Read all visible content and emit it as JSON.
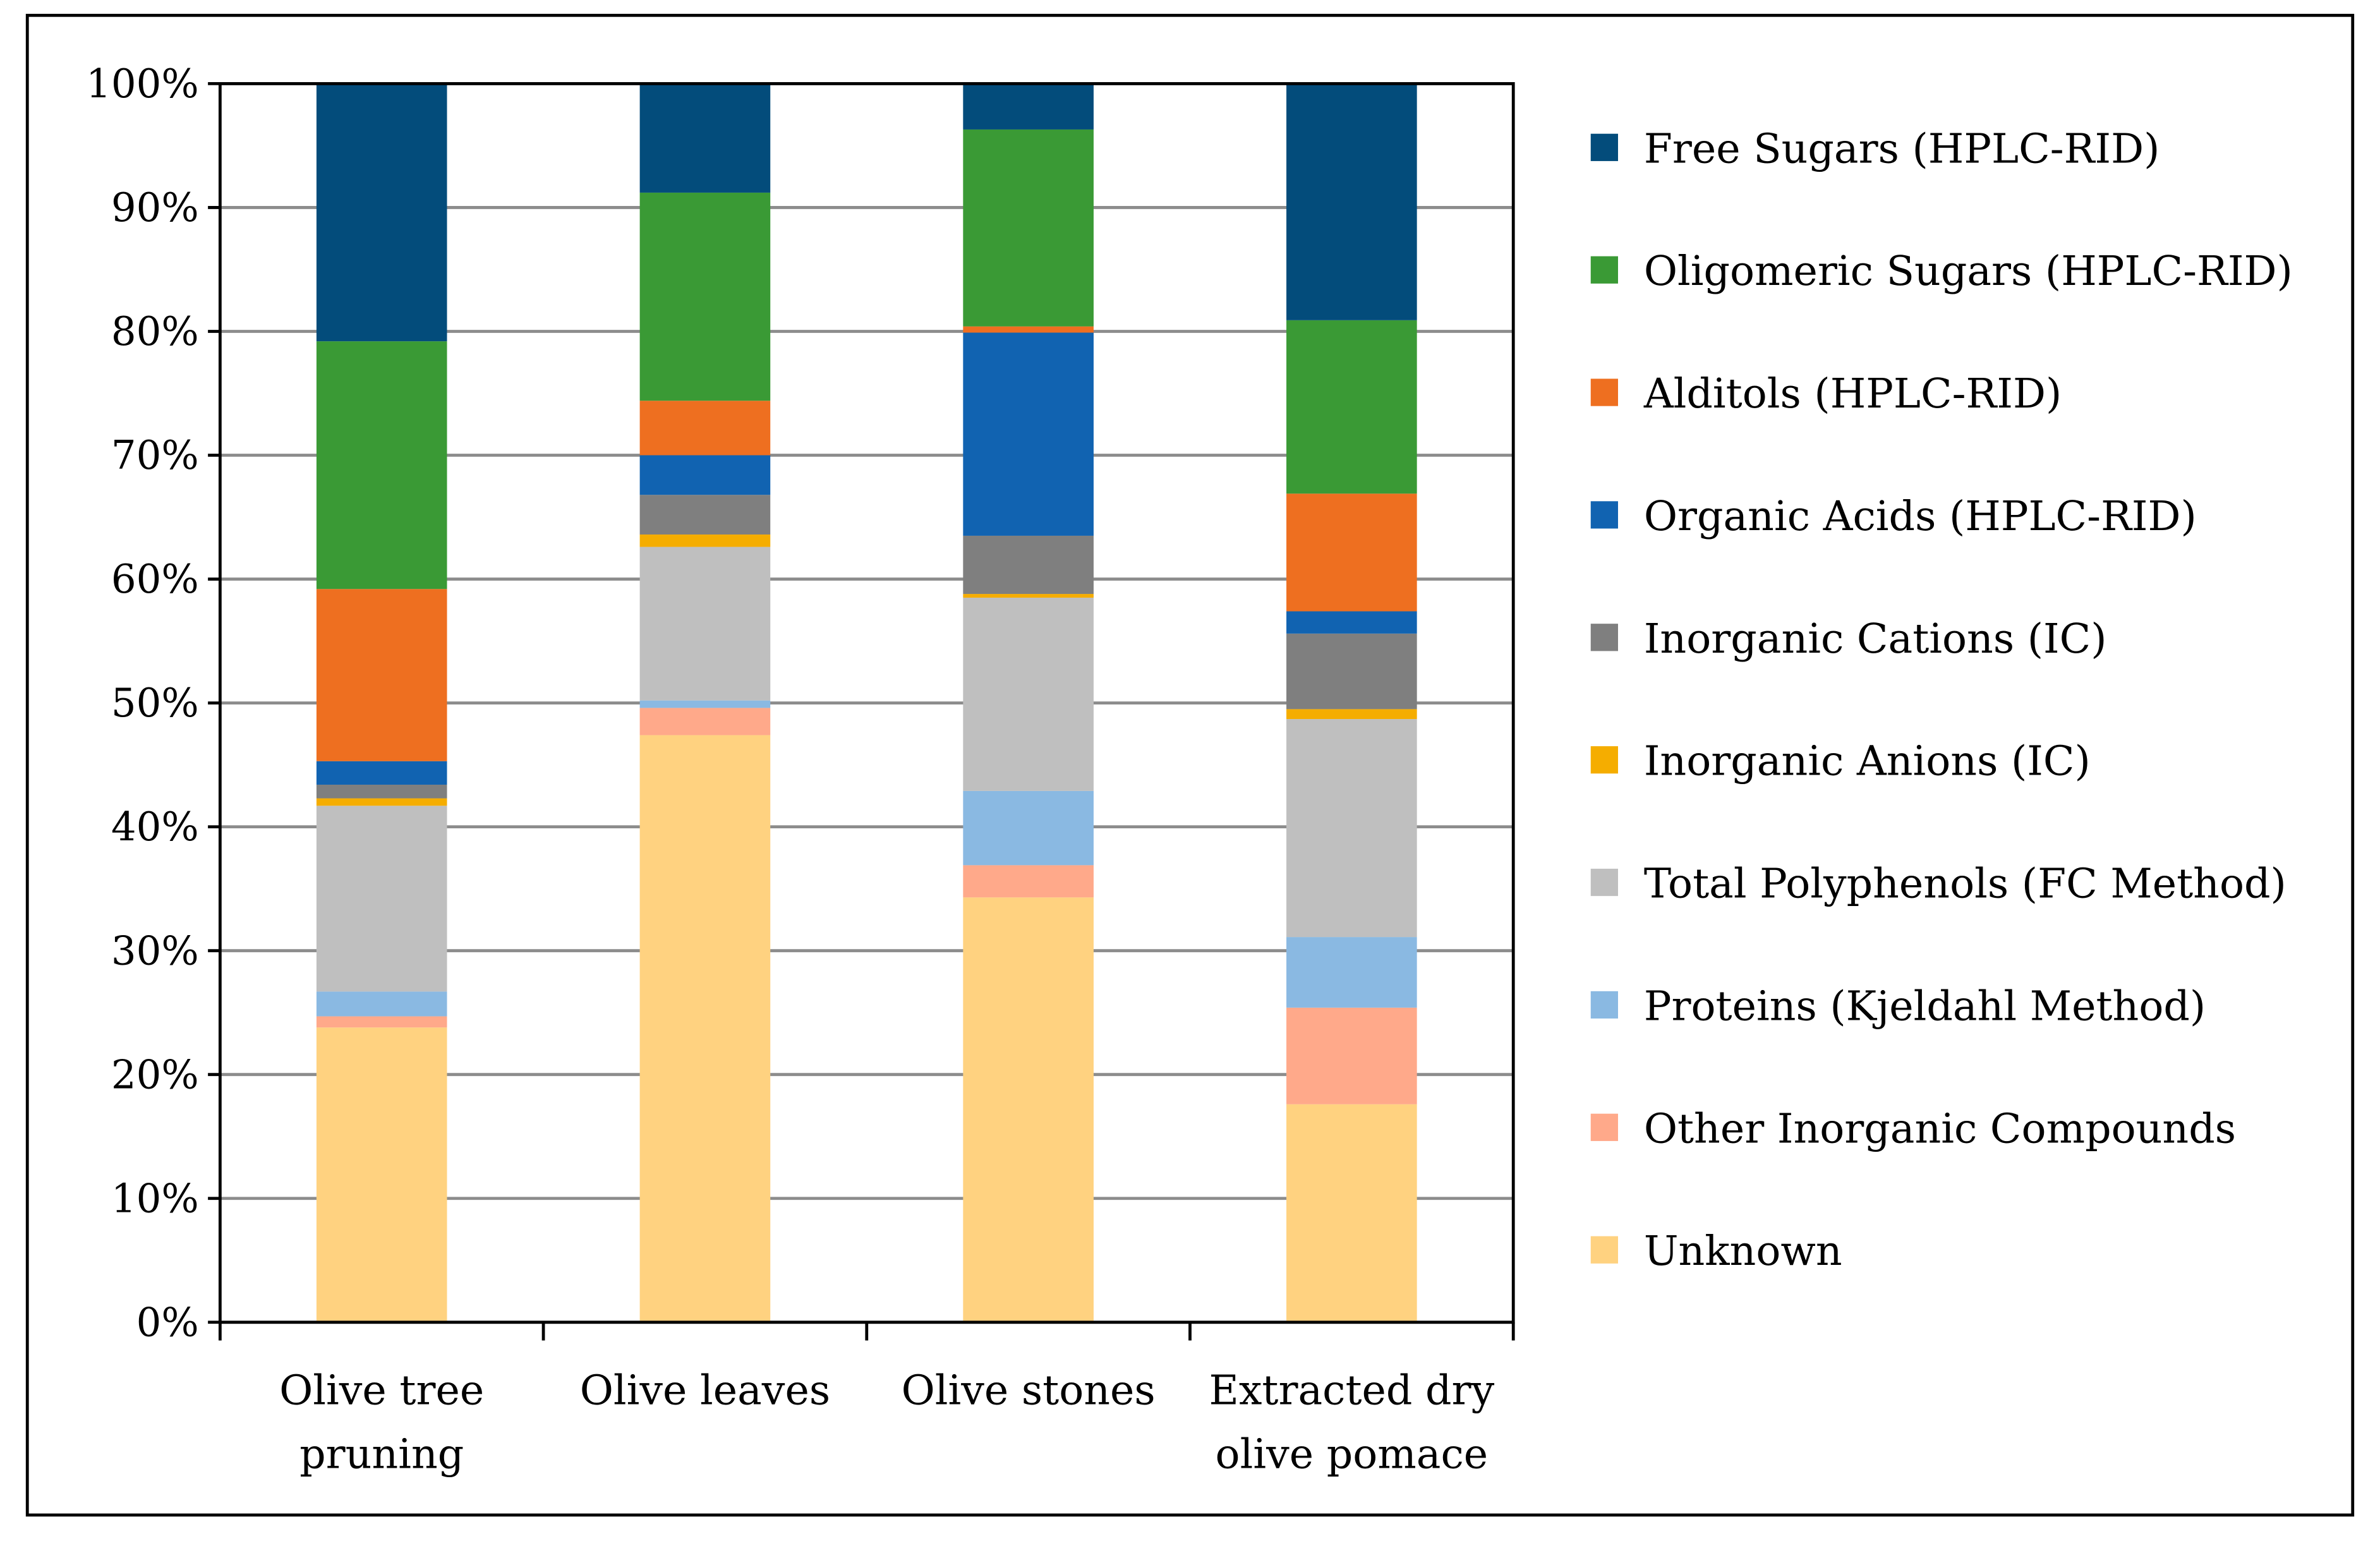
{
  "chart_data": {
    "type": "bar",
    "stacked": true,
    "percent": true,
    "title": "",
    "xlabel": "",
    "ylabel": "",
    "ylim": [
      0,
      100
    ],
    "yticks": [
      "0%",
      "10%",
      "20%",
      "30%",
      "40%",
      "50%",
      "60%",
      "70%",
      "80%",
      "90%",
      "100%"
    ],
    "grid": true,
    "legend_position": "right",
    "categories": [
      [
        "Olive tree",
        "pruning"
      ],
      [
        "Olive leaves"
      ],
      [
        "Olive stones"
      ],
      [
        "Extracted dry",
        "olive pomace"
      ]
    ],
    "series": [
      {
        "name": "Unknown",
        "color": "#FFD280",
        "values": [
          23.8,
          47.4,
          34.3,
          17.6
        ]
      },
      {
        "name": "Other Inorganic Compounds",
        "color": "#FFA98A",
        "values": [
          0.9,
          2.2,
          2.6,
          7.8
        ]
      },
      {
        "name": "Proteins (Kjeldahl Method)",
        "color": "#8AB9E2",
        "values": [
          2.0,
          0.6,
          6.0,
          5.7
        ]
      },
      {
        "name": "Total Polyphenols (FC Method)",
        "color": "#BFBFBF",
        "values": [
          15.0,
          12.4,
          15.6,
          17.6
        ]
      },
      {
        "name": "Inorganic Anions (IC)",
        "color": "#F5AD00",
        "values": [
          0.6,
          1.0,
          0.3,
          0.8
        ]
      },
      {
        "name": "Inorganic Cations (IC)",
        "color": "#7F7F7F",
        "values": [
          1.1,
          3.2,
          4.7,
          6.1
        ]
      },
      {
        "name": "Organic Acids (HPLC-RID)",
        "color": "#1163B1",
        "values": [
          1.9,
          3.2,
          16.4,
          1.8
        ]
      },
      {
        "name": "Alditols (HPLC-RID)",
        "color": "#EE6F20",
        "values": [
          13.9,
          4.4,
          0.5,
          9.5
        ]
      },
      {
        "name": "Oligomeric Sugars (HPLC-RID)",
        "color": "#3A9A35",
        "values": [
          20.0,
          16.8,
          15.9,
          14.0
        ]
      },
      {
        "name": "Free Sugars (HPLC-RID)",
        "color": "#034C7B",
        "values": [
          20.8,
          8.8,
          3.7,
          19.1
        ]
      }
    ]
  }
}
